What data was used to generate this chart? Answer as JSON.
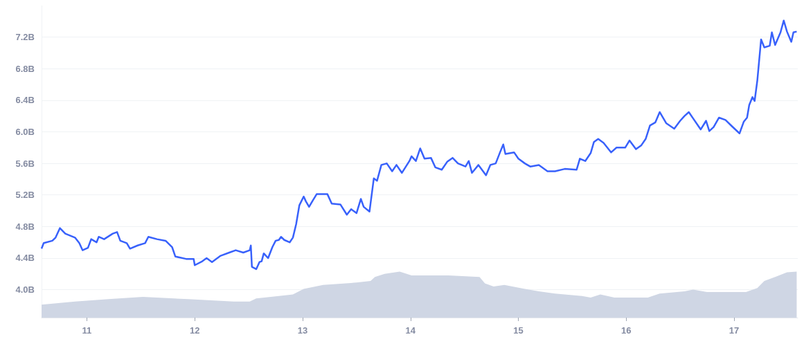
{
  "chart_data": {
    "type": "line",
    "xlim": [
      10.58,
      17.59
    ],
    "xticks": [
      11,
      12,
      13,
      14,
      15,
      16,
      17
    ],
    "ylim": [
      3.646,
      7.6
    ],
    "yticks": [
      {
        "value": 4.0,
        "label": "4.0B"
      },
      {
        "value": 4.4,
        "label": "4.4B"
      },
      {
        "value": 4.8,
        "label": "4.8B"
      },
      {
        "value": 5.2,
        "label": "5.2B"
      },
      {
        "value": 5.6,
        "label": "5.6B"
      },
      {
        "value": 6.0,
        "label": "6.0B"
      },
      {
        "value": 6.4,
        "label": "6.4B"
      },
      {
        "value": 6.8,
        "label": "6.8B"
      },
      {
        "value": 7.2,
        "label": "7.2B"
      }
    ],
    "grid": "y",
    "marker": "none",
    "line_style": "solid",
    "series": [
      {
        "type": "area",
        "color": "#cfd6e4",
        "x": [
          10.58,
          10.89,
          11.2,
          11.52,
          11.94,
          12.36,
          12.51,
          12.57,
          12.78,
          12.91,
          13.01,
          13.19,
          13.5,
          13.63,
          13.67,
          13.76,
          13.9,
          14.01,
          14.35,
          14.64,
          14.69,
          14.77,
          14.87,
          15.06,
          15.19,
          15.34,
          15.59,
          15.67,
          15.76,
          15.89,
          16.2,
          16.31,
          16.54,
          16.62,
          16.75,
          17.11,
          17.215,
          17.28,
          17.38,
          17.49,
          17.58
        ],
        "values": [
          3.81,
          3.85,
          3.88,
          3.91,
          3.88,
          3.85,
          3.85,
          3.89,
          3.92,
          3.94,
          4.01,
          4.06,
          4.09,
          4.11,
          4.16,
          4.2,
          4.23,
          4.18,
          4.18,
          4.16,
          4.08,
          4.04,
          4.06,
          4.01,
          3.98,
          3.95,
          3.92,
          3.9,
          3.94,
          3.9,
          3.9,
          3.95,
          3.98,
          4.0,
          3.97,
          3.97,
          4.02,
          4.11,
          4.16,
          4.22,
          4.23
        ]
      },
      {
        "color": "#3861fb",
        "x": [
          10.58,
          10.6,
          10.68,
          10.71,
          10.75,
          10.8,
          10.89,
          10.93,
          10.96,
          11.01,
          11.04,
          11.09,
          11.11,
          11.16,
          11.24,
          11.28,
          11.31,
          11.37,
          11.4,
          11.47,
          11.54,
          11.57,
          11.65,
          11.73,
          11.79,
          11.82,
          11.92,
          11.99,
          12.0,
          12.07,
          12.11,
          12.16,
          12.24,
          12.32,
          12.38,
          12.45,
          12.51,
          12.52,
          12.53,
          12.57,
          12.6,
          12.62,
          12.64,
          12.68,
          12.72,
          12.75,
          12.78,
          12.8,
          12.83,
          12.88,
          12.91,
          12.94,
          12.97,
          13.01,
          13.03,
          13.06,
          13.09,
          13.13,
          13.23,
          13.27,
          13.35,
          13.41,
          13.45,
          13.5,
          13.54,
          13.566,
          13.62,
          13.66,
          13.69,
          13.73,
          13.78,
          13.83,
          13.87,
          13.92,
          13.99,
          14.01,
          14.05,
          14.09,
          14.13,
          14.19,
          14.23,
          14.29,
          14.34,
          14.39,
          14.44,
          14.51,
          14.54,
          14.57,
          14.63,
          14.7,
          14.74,
          14.79,
          14.83,
          14.86,
          14.88,
          14.96,
          15.0,
          15.06,
          15.11,
          15.19,
          15.27,
          15.34,
          15.43,
          15.54,
          15.57,
          15.62,
          15.67,
          15.7,
          15.74,
          15.79,
          15.86,
          15.91,
          15.99,
          16.03,
          16.09,
          16.14,
          16.18,
          16.22,
          16.27,
          16.31,
          16.37,
          16.445,
          16.5,
          16.54,
          16.58,
          16.62,
          16.69,
          16.74,
          16.77,
          16.81,
          16.86,
          16.92,
          16.98,
          17.05,
          17.09,
          17.12,
          17.14,
          17.17,
          17.19,
          17.215,
          17.25,
          17.28,
          17.33,
          17.35,
          17.38,
          17.43,
          17.46,
          17.49,
          17.53,
          17.55,
          17.58
        ],
        "values": [
          4.52,
          4.59,
          4.62,
          4.66,
          4.78,
          4.71,
          4.66,
          4.59,
          4.5,
          4.53,
          4.64,
          4.6,
          4.67,
          4.64,
          4.71,
          4.73,
          4.62,
          4.59,
          4.52,
          4.56,
          4.59,
          4.67,
          4.64,
          4.62,
          4.54,
          4.42,
          4.39,
          4.39,
          4.31,
          4.36,
          4.4,
          4.35,
          4.43,
          4.47,
          4.5,
          4.47,
          4.5,
          4.56,
          4.29,
          4.26,
          4.35,
          4.36,
          4.46,
          4.4,
          4.54,
          4.62,
          4.63,
          4.67,
          4.63,
          4.6,
          4.66,
          4.83,
          5.07,
          5.18,
          5.12,
          5.05,
          5.12,
          5.21,
          5.21,
          5.09,
          5.08,
          4.95,
          5.02,
          4.97,
          5.15,
          5.05,
          4.99,
          5.41,
          5.38,
          5.58,
          5.6,
          5.5,
          5.58,
          5.48,
          5.63,
          5.69,
          5.63,
          5.79,
          5.66,
          5.67,
          5.55,
          5.52,
          5.62,
          5.67,
          5.6,
          5.56,
          5.63,
          5.48,
          5.58,
          5.45,
          5.58,
          5.6,
          5.74,
          5.84,
          5.72,
          5.74,
          5.66,
          5.6,
          5.56,
          5.58,
          5.5,
          5.5,
          5.53,
          5.52,
          5.66,
          5.63,
          5.73,
          5.87,
          5.91,
          5.86,
          5.74,
          5.8,
          5.8,
          5.89,
          5.78,
          5.83,
          5.91,
          6.08,
          6.12,
          6.25,
          6.11,
          6.04,
          6.14,
          6.2,
          6.25,
          6.17,
          6.03,
          6.14,
          6.01,
          6.06,
          6.18,
          6.15,
          6.07,
          5.98,
          6.13,
          6.18,
          6.34,
          6.44,
          6.39,
          6.65,
          7.17,
          7.07,
          7.09,
          7.26,
          7.1,
          7.26,
          7.41,
          7.27,
          7.14,
          7.26,
          7.27
        ]
      }
    ]
  }
}
